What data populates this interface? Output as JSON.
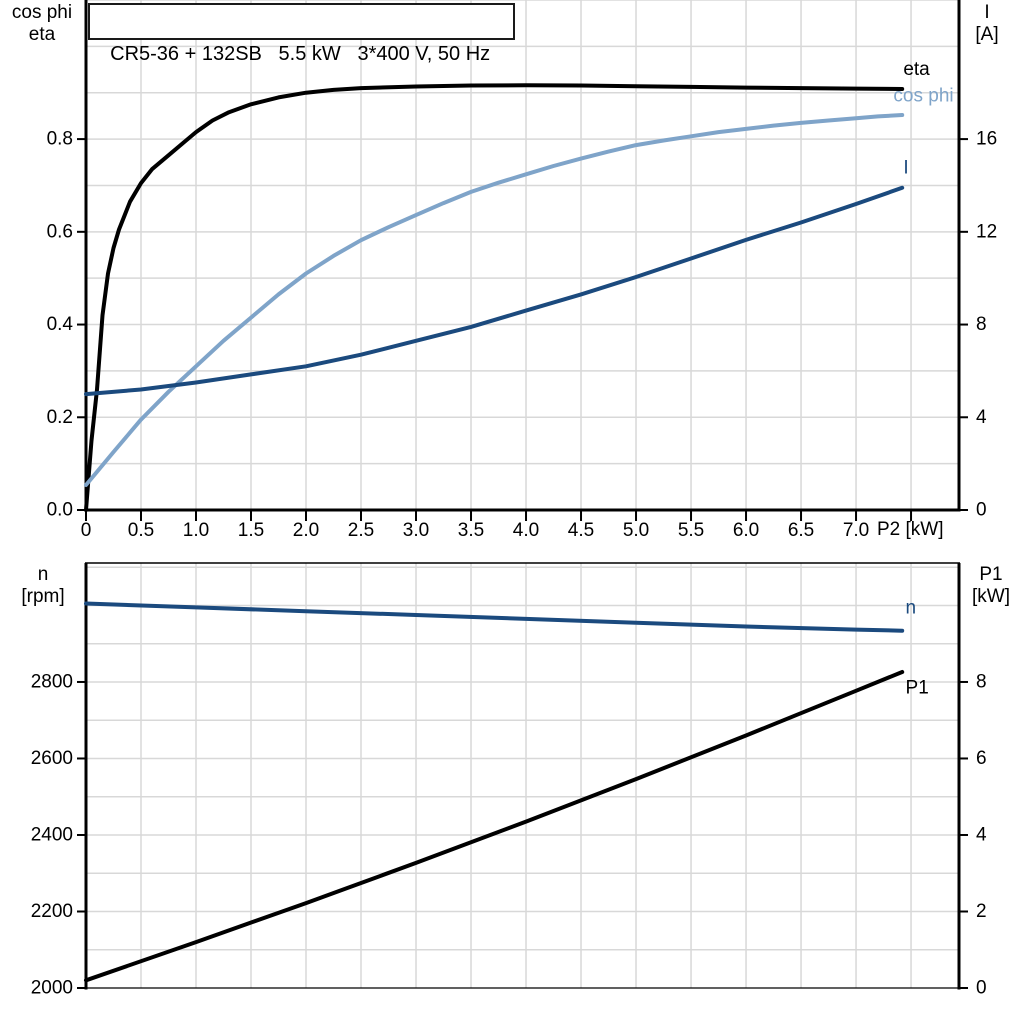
{
  "title_box": {
    "text": "CR5-36 + 132SB   5.5 kW   3*400 V, 50 Hz"
  },
  "colors": {
    "eta": "#000000",
    "cos_phi": "#7FA4C9",
    "current": "#1B4A7E",
    "n": "#1B4A7E",
    "p1": "#000000",
    "grid": "#D8D8D8",
    "axis": "#000000"
  },
  "chart_data": [
    {
      "type": "line",
      "name": "motor-efficiency-current-chart",
      "corner_labels": {
        "top_left": [
          "cos phi",
          "eta"
        ],
        "top_right": [
          "I",
          "[A]"
        ],
        "x_axis": "P2 [kW]"
      },
      "x": {
        "lim": [
          0,
          7.936
        ],
        "grid_step": 0.5,
        "ticks": [
          {
            "v": 0,
            "t": "0"
          },
          {
            "v": 0.5,
            "t": "0.5"
          },
          {
            "v": 1,
            "t": "1.0"
          },
          {
            "v": 1.5,
            "t": "1.5"
          },
          {
            "v": 2,
            "t": "2.0"
          },
          {
            "v": 2.5,
            "t": "2.5"
          },
          {
            "v": 3,
            "t": "3.0"
          },
          {
            "v": 3.5,
            "t": "3.5"
          },
          {
            "v": 4,
            "t": "4.0"
          },
          {
            "v": 4.5,
            "t": "4.5"
          },
          {
            "v": 5,
            "t": "5.0"
          },
          {
            "v": 5.5,
            "t": "5.5"
          },
          {
            "v": 6,
            "t": "6.0"
          },
          {
            "v": 6.5,
            "t": "6.5"
          },
          {
            "v": 7,
            "t": "7.0"
          },
          {
            "v": 7.5,
            "t": ""
          }
        ]
      },
      "y_left": {
        "lim": [
          0,
          1.1
        ],
        "grid_step": 0.1,
        "ticks": [
          {
            "v": 0,
            "t": "0.0"
          },
          {
            "v": 0.2,
            "t": "0.2"
          },
          {
            "v": 0.4,
            "t": "0.4"
          },
          {
            "v": 0.6,
            "t": "0.6"
          },
          {
            "v": 0.8,
            "t": "0.8"
          }
        ]
      },
      "y_right": {
        "lim": [
          0,
          22
        ],
        "ticks": [
          {
            "v": 0,
            "t": "0"
          },
          {
            "v": 4,
            "t": "4"
          },
          {
            "v": 8,
            "t": "8"
          },
          {
            "v": 12,
            "t": "12"
          },
          {
            "v": 16,
            "t": "16"
          }
        ]
      },
      "series": [
        {
          "name": "eta",
          "axis": "left",
          "color": "#000000",
          "width": 4,
          "end_label": {
            "text": "eta",
            "x": 7.43,
            "y": 0.95
          },
          "points": [
            [
              0,
              0
            ],
            [
              0.05,
              0.15
            ],
            [
              0.1,
              0.26
            ],
            [
              0.15,
              0.42
            ],
            [
              0.2,
              0.51
            ],
            [
              0.25,
              0.565
            ],
            [
              0.3,
              0.605
            ],
            [
              0.4,
              0.665
            ],
            [
              0.5,
              0.705
            ],
            [
              0.6,
              0.735
            ],
            [
              0.75,
              0.765
            ],
            [
              0.9,
              0.795
            ],
            [
              1.0,
              0.815
            ],
            [
              1.15,
              0.84
            ],
            [
              1.3,
              0.858
            ],
            [
              1.5,
              0.875
            ],
            [
              1.75,
              0.89
            ],
            [
              2.0,
              0.9
            ],
            [
              2.25,
              0.906
            ],
            [
              2.5,
              0.91
            ],
            [
              3.0,
              0.9135
            ],
            [
              3.5,
              0.9155
            ],
            [
              4.0,
              0.916
            ],
            [
              4.5,
              0.9155
            ],
            [
              5.0,
              0.914
            ],
            [
              5.5,
              0.9125
            ],
            [
              6.0,
              0.911
            ],
            [
              6.5,
              0.91
            ],
            [
              7.0,
              0.909
            ],
            [
              7.42,
              0.908
            ]
          ]
        },
        {
          "name": "cos phi",
          "axis": "left",
          "color": "#7FA4C9",
          "width": 4,
          "end_label": {
            "text": "cos phi",
            "x": 7.34,
            "y": 0.893
          },
          "points": [
            [
              0,
              0.054
            ],
            [
              0.25,
              0.125
            ],
            [
              0.5,
              0.195
            ],
            [
              0.75,
              0.255
            ],
            [
              1.0,
              0.31
            ],
            [
              1.25,
              0.365
            ],
            [
              1.5,
              0.415
            ],
            [
              1.75,
              0.465
            ],
            [
              2.0,
              0.51
            ],
            [
              2.25,
              0.548
            ],
            [
              2.5,
              0.582
            ],
            [
              2.75,
              0.61
            ],
            [
              3.0,
              0.636
            ],
            [
              3.25,
              0.662
            ],
            [
              3.5,
              0.686
            ],
            [
              3.75,
              0.706
            ],
            [
              4.0,
              0.724
            ],
            [
              4.25,
              0.742
            ],
            [
              4.5,
              0.758
            ],
            [
              4.75,
              0.773
            ],
            [
              5.0,
              0.787
            ],
            [
              5.25,
              0.797
            ],
            [
              5.5,
              0.806
            ],
            [
              5.75,
              0.815
            ],
            [
              6.0,
              0.822
            ],
            [
              6.25,
              0.829
            ],
            [
              6.5,
              0.835
            ],
            [
              6.75,
              0.84
            ],
            [
              7.0,
              0.845
            ],
            [
              7.2,
              0.849
            ],
            [
              7.42,
              0.852
            ]
          ]
        },
        {
          "name": "I",
          "axis": "right",
          "color": "#1B4A7E",
          "width": 4,
          "end_label": {
            "text": "I",
            "x": 7.43,
            "y": 14.75
          },
          "points": [
            [
              0,
              5.0
            ],
            [
              0.5,
              5.2
            ],
            [
              1.0,
              5.5
            ],
            [
              1.5,
              5.85
            ],
            [
              2.0,
              6.2
            ],
            [
              2.5,
              6.7
            ],
            [
              3.0,
              7.3
            ],
            [
              3.5,
              7.9
            ],
            [
              4.0,
              8.6
            ],
            [
              4.5,
              9.3
            ],
            [
              5.0,
              10.05
            ],
            [
              5.5,
              10.85
            ],
            [
              6.0,
              11.65
            ],
            [
              6.5,
              12.4
            ],
            [
              7.0,
              13.2
            ],
            [
              7.42,
              13.9
            ]
          ]
        }
      ]
    },
    {
      "type": "line",
      "name": "speed-power-chart",
      "corner_labels": {
        "top_left": [
          "n",
          "[rpm]"
        ],
        "top_right": [
          "P1",
          "[kW]"
        ],
        "x_axis": ""
      },
      "x": {
        "lim": [
          0,
          7.936
        ],
        "grid_step": 0.5,
        "ticks": []
      },
      "y_left": {
        "lim": [
          2000,
          3111
        ],
        "grid_step": 100,
        "ticks": [
          {
            "v": 2000,
            "t": "2000"
          },
          {
            "v": 2200,
            "t": "2200"
          },
          {
            "v": 2400,
            "t": "2400"
          },
          {
            "v": 2600,
            "t": "2600"
          },
          {
            "v": 2800,
            "t": "2800"
          }
        ]
      },
      "y_right": {
        "lim": [
          0,
          11.11
        ],
        "ticks": [
          {
            "v": 0,
            "t": "0"
          },
          {
            "v": 2,
            "t": "2"
          },
          {
            "v": 4,
            "t": "4"
          },
          {
            "v": 6,
            "t": "6"
          },
          {
            "v": 8,
            "t": "8"
          }
        ]
      },
      "series": [
        {
          "name": "n",
          "axis": "left",
          "color": "#1B4A7E",
          "width": 4,
          "end_label": {
            "text": "n",
            "x": 7.45,
            "y": 2993
          },
          "points": [
            [
              0,
              3005
            ],
            [
              1,
              2995
            ],
            [
              2,
              2985
            ],
            [
              3,
              2975
            ],
            [
              4,
              2965
            ],
            [
              5,
              2955
            ],
            [
              6,
              2945
            ],
            [
              7,
              2937
            ],
            [
              7.42,
              2934
            ]
          ]
        },
        {
          "name": "P1",
          "axis": "right",
          "color": "#000000",
          "width": 4,
          "end_label": {
            "text": "P1",
            "x": 7.45,
            "y": 7.84
          },
          "points": [
            [
              0,
              0.2
            ],
            [
              1,
              1.2
            ],
            [
              2,
              2.22
            ],
            [
              3,
              3.27
            ],
            [
              4,
              4.35
            ],
            [
              5,
              5.46
            ],
            [
              6,
              6.6
            ],
            [
              7,
              7.77
            ],
            [
              7.42,
              8.26
            ]
          ]
        }
      ]
    }
  ]
}
